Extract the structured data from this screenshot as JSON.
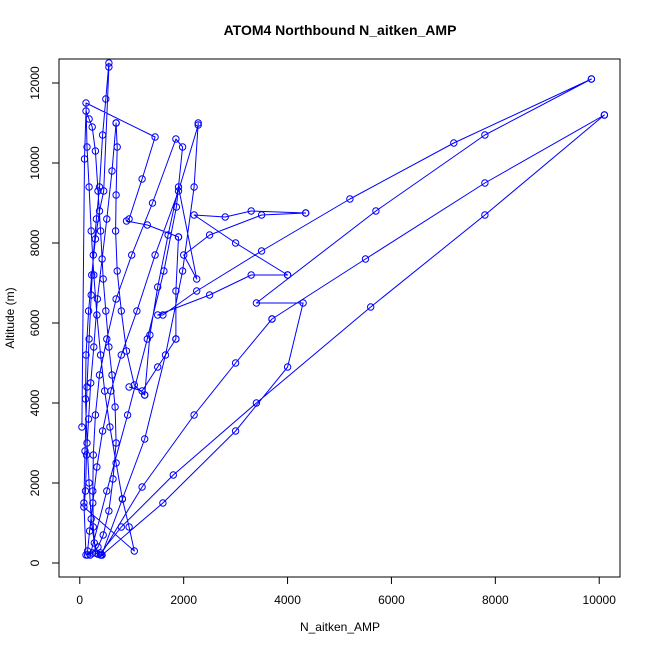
{
  "chart_data": {
    "type": "line",
    "title": "ATOM4 Northbound N_aitken_AMP",
    "xlabel": "N_aitken_AMP",
    "ylabel": "Altitude (m)",
    "xlim": [
      -400,
      10400
    ],
    "ylim": [
      -350,
      12600
    ],
    "xticks": [
      0,
      2000,
      4000,
      6000,
      8000,
      10000
    ],
    "yticks": [
      0,
      2000,
      4000,
      6000,
      8000,
      10000,
      12000
    ],
    "grid": false,
    "series": [
      {
        "color": "#0000ff",
        "marker": "open-circle",
        "points": [
          [
            40,
            3400
          ],
          [
            90,
            10100
          ],
          [
            120,
            11300
          ],
          [
            180,
            11100
          ],
          [
            240,
            10900
          ],
          [
            300,
            10300
          ],
          [
            350,
            9300
          ],
          [
            400,
            8300
          ],
          [
            450,
            7100
          ],
          [
            500,
            6300
          ],
          [
            560,
            5400
          ],
          [
            620,
            4700
          ],
          [
            680,
            3900
          ],
          [
            700,
            3000
          ],
          [
            640,
            2100
          ],
          [
            560,
            1300
          ],
          [
            450,
            700
          ],
          [
            350,
            400
          ],
          [
            250,
            250
          ],
          [
            150,
            200
          ],
          [
            120,
            200
          ],
          [
            80,
            1500
          ],
          [
            100,
            2800
          ],
          [
            140,
            4400
          ],
          [
            180,
            5600
          ],
          [
            220,
            6700
          ],
          [
            260,
            7700
          ],
          [
            320,
            8600
          ],
          [
            380,
            9400
          ],
          [
            440,
            10700
          ],
          [
            500,
            11600
          ],
          [
            560,
            12500
          ],
          [
            560,
            12400
          ],
          [
            460,
            9300
          ],
          [
            380,
            8800
          ],
          [
            300,
            8100
          ],
          [
            230,
            7200
          ],
          [
            170,
            6300
          ],
          [
            120,
            5200
          ],
          [
            110,
            4100
          ],
          [
            140,
            3000
          ],
          [
            180,
            2000
          ],
          [
            220,
            1100
          ],
          [
            280,
            500
          ],
          [
            350,
            220
          ],
          [
            420,
            200
          ],
          [
            820,
            1600
          ],
          [
            1250,
            3100
          ],
          [
            1650,
            5200
          ],
          [
            1980,
            7300
          ],
          [
            2200,
            9400
          ],
          [
            2280,
            11000
          ],
          [
            2280,
            10950
          ],
          [
            1900,
            9300
          ],
          [
            1450,
            7700
          ],
          [
            1100,
            6300
          ],
          [
            800,
            5200
          ],
          [
            600,
            4300
          ],
          [
            440,
            3300
          ],
          [
            330,
            2400
          ],
          [
            250,
            1500
          ],
          [
            190,
            800
          ],
          [
            150,
            300
          ],
          [
            200,
            200
          ],
          [
            520,
            1800
          ],
          [
            920,
            3700
          ],
          [
            1300,
            5600
          ],
          [
            1620,
            7300
          ],
          [
            1860,
            8900
          ],
          [
            1980,
            10400
          ],
          [
            1850,
            10600
          ],
          [
            1400,
            9000
          ],
          [
            1000,
            7700
          ],
          [
            700,
            6600
          ],
          [
            520,
            5600
          ],
          [
            380,
            4700
          ],
          [
            300,
            3700
          ],
          [
            260,
            2700
          ],
          [
            250,
            1800
          ],
          [
            260,
            900
          ],
          [
            300,
            250
          ],
          [
            400,
            200
          ],
          [
            1200,
            1900
          ],
          [
            2200,
            3700
          ],
          [
            3000,
            5000
          ],
          [
            3700,
            6100
          ],
          [
            3700,
            6100
          ],
          [
            5500,
            7600
          ],
          [
            7800,
            9500
          ],
          [
            10100,
            11200
          ],
          [
            10100,
            11200
          ],
          [
            7800,
            8700
          ],
          [
            5600,
            6400
          ],
          [
            3400,
            4000
          ],
          [
            1800,
            2200
          ],
          [
            800,
            900
          ],
          [
            400,
            250
          ],
          [
            430,
            200
          ],
          [
            1600,
            1500
          ],
          [
            3000,
            3300
          ],
          [
            4000,
            4900
          ],
          [
            4300,
            6500
          ],
          [
            3400,
            6500
          ],
          [
            5700,
            8800
          ],
          [
            7800,
            10700
          ],
          [
            9850,
            12100
          ],
          [
            9850,
            12100
          ],
          [
            7200,
            10500
          ],
          [
            5200,
            9100
          ],
          [
            3500,
            7800
          ],
          [
            2250,
            6800
          ],
          [
            1600,
            6200
          ],
          [
            1500,
            6200
          ],
          [
            2500,
            6700
          ],
          [
            3300,
            7200
          ],
          [
            4000,
            7200
          ],
          [
            4000,
            7200
          ],
          [
            3000,
            8000
          ],
          [
            2200,
            8700
          ],
          [
            2800,
            8650
          ],
          [
            3300,
            8800
          ],
          [
            4350,
            8750
          ],
          [
            4350,
            8750
          ],
          [
            3500,
            8700
          ],
          [
            2500,
            8200
          ],
          [
            2000,
            7700
          ],
          [
            2250,
            7100
          ],
          [
            1900,
            9400
          ],
          [
            1700,
            8200
          ],
          [
            1500,
            6900
          ],
          [
            1350,
            5700
          ],
          [
            1250,
            4200
          ],
          [
            1250,
            4200
          ],
          [
            1050,
            4450
          ],
          [
            900,
            5300
          ],
          [
            800,
            6300
          ],
          [
            720,
            7300
          ],
          [
            690,
            8300
          ],
          [
            700,
            9200
          ],
          [
            720,
            10400
          ],
          [
            700,
            11000
          ],
          [
            700,
            11000
          ],
          [
            620,
            9800
          ],
          [
            520,
            8600
          ],
          [
            430,
            7600
          ],
          [
            340,
            6600
          ],
          [
            270,
            5400
          ],
          [
            210,
            4500
          ],
          [
            170,
            3600
          ],
          [
            130,
            2700
          ],
          [
            110,
            1800
          ],
          [
            80,
            1400
          ],
          [
            1050,
            300
          ],
          [
            950,
            900
          ],
          [
            820,
            1600
          ],
          [
            700,
            2500
          ],
          [
            580,
            3400
          ],
          [
            480,
            4300
          ],
          [
            400,
            5200
          ],
          [
            330,
            6200
          ],
          [
            270,
            7200
          ],
          [
            220,
            8300
          ],
          [
            180,
            9400
          ],
          [
            140,
            10400
          ],
          [
            120,
            11500
          ],
          [
            1450,
            10650
          ],
          [
            1200,
            9600
          ],
          [
            950,
            8600
          ],
          [
            900,
            8550
          ],
          [
            1300,
            8450
          ],
          [
            1900,
            8150
          ],
          [
            1900,
            8150
          ],
          [
            1850,
            6800
          ],
          [
            1850,
            5600
          ],
          [
            1850,
            5600
          ],
          [
            1500,
            4900
          ],
          [
            1200,
            4300
          ],
          [
            950,
            4400
          ]
        ]
      }
    ]
  }
}
